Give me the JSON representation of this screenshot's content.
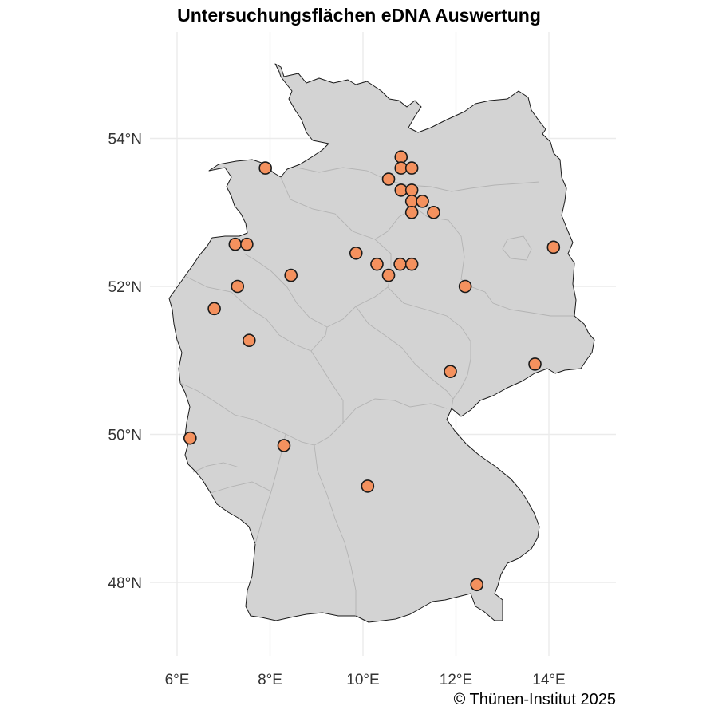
{
  "title": "Untersuchungsflächen eDNA Auswertung",
  "caption": "© Thünen-Institut 2025",
  "colors": {
    "land": "#d3d3d3",
    "border": "#1a1a1a",
    "state_border": "#b3b3b3",
    "grid": "#ebebeb",
    "marker_fill": "#f4915e",
    "marker_stroke": "#1a1a1a"
  },
  "chart_data": {
    "type": "scatter",
    "x_axis": {
      "ticks": [
        6,
        8,
        10,
        12,
        14
      ],
      "tick_labels": [
        "6°E",
        "8°E",
        "10°E",
        "12°E",
        "14°E"
      ]
    },
    "y_axis": {
      "ticks": [
        48,
        50,
        52,
        54
      ],
      "tick_labels": [
        "48°N",
        "50°N",
        "52°N",
        "54°N"
      ]
    },
    "grid": true,
    "points": [
      {
        "lon": 7.9,
        "lat": 53.6
      },
      {
        "lon": 10.82,
        "lat": 53.75
      },
      {
        "lon": 10.82,
        "lat": 53.6
      },
      {
        "lon": 11.05,
        "lat": 53.6
      },
      {
        "lon": 10.55,
        "lat": 53.45
      },
      {
        "lon": 10.82,
        "lat": 53.3
      },
      {
        "lon": 11.05,
        "lat": 53.3
      },
      {
        "lon": 11.05,
        "lat": 53.15
      },
      {
        "lon": 11.28,
        "lat": 53.15
      },
      {
        "lon": 11.05,
        "lat": 53.0
      },
      {
        "lon": 11.52,
        "lat": 53.0
      },
      {
        "lon": 7.25,
        "lat": 52.57
      },
      {
        "lon": 7.5,
        "lat": 52.57
      },
      {
        "lon": 14.1,
        "lat": 52.53
      },
      {
        "lon": 9.85,
        "lat": 52.45
      },
      {
        "lon": 10.3,
        "lat": 52.3
      },
      {
        "lon": 10.8,
        "lat": 52.3
      },
      {
        "lon": 11.05,
        "lat": 52.3
      },
      {
        "lon": 10.55,
        "lat": 52.15
      },
      {
        "lon": 8.45,
        "lat": 52.15
      },
      {
        "lon": 7.3,
        "lat": 52.0
      },
      {
        "lon": 12.2,
        "lat": 52.0
      },
      {
        "lon": 6.8,
        "lat": 51.7
      },
      {
        "lon": 7.55,
        "lat": 51.27
      },
      {
        "lon": 13.7,
        "lat": 50.95
      },
      {
        "lon": 11.88,
        "lat": 50.85
      },
      {
        "lon": 6.28,
        "lat": 49.95
      },
      {
        "lon": 8.3,
        "lat": 49.85
      },
      {
        "lon": 10.1,
        "lat": 49.3
      },
      {
        "lon": 12.45,
        "lat": 47.97
      }
    ]
  }
}
